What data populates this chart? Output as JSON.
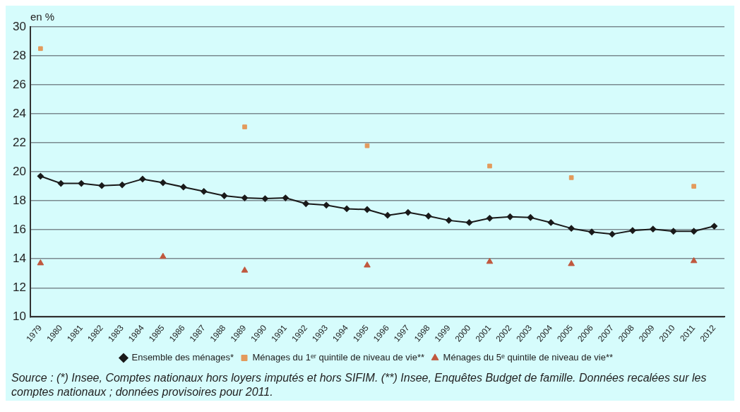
{
  "chart_data": {
    "type": "line",
    "ylabel": "en %",
    "categories": [
      "1979",
      "1980",
      "1981",
      "1982",
      "1983",
      "1984",
      "1985",
      "1986",
      "1987",
      "1988",
      "1989",
      "1990",
      "1991",
      "1992",
      "1993",
      "1994",
      "1995",
      "1996",
      "1997",
      "1998",
      "1999",
      "2000",
      "2001",
      "2002",
      "2003",
      "2004",
      "2005",
      "2006",
      "2007",
      "2008",
      "2009",
      "2010",
      "2011",
      "2012"
    ],
    "ylim": [
      10,
      30
    ],
    "yticks": [
      10,
      12,
      14,
      16,
      18,
      20,
      22,
      24,
      26,
      28,
      30
    ],
    "grid": "y",
    "legend": "bottom",
    "annotations": [
      "Source : (*) Insee, Comptes nationaux hors loyers imputés et hors SIFIM. (**) Insee, Enquêtes Budget de famille. Données recalées sur les comptes nationaux ; données provisoires pour 2011."
    ],
    "series": [
      {
        "name": "Ensemble des ménages*",
        "color": "#1a1a1a",
        "marker": "diamond",
        "values": [
          19.7,
          19.2,
          19.2,
          19.05,
          19.1,
          19.5,
          19.25,
          18.95,
          18.65,
          18.35,
          18.2,
          18.15,
          18.2,
          17.8,
          17.7,
          17.45,
          17.4,
          17.0,
          17.2,
          16.95,
          16.65,
          16.5,
          16.8,
          16.9,
          16.85,
          16.5,
          16.1,
          15.85,
          15.7,
          15.95,
          16.05,
          15.9,
          15.9,
          16.25
        ]
      },
      {
        "name": "Ménages du 1ᵉʳ quintile de niveau de vie**",
        "color": "#e39a5c",
        "type": "scatter",
        "marker": "square",
        "values": [
          28.5,
          null,
          null,
          null,
          null,
          null,
          null,
          null,
          null,
          null,
          23.1,
          null,
          null,
          null,
          null,
          null,
          21.8,
          null,
          null,
          null,
          null,
          null,
          20.4,
          null,
          null,
          null,
          19.6,
          null,
          null,
          null,
          null,
          null,
          19.0,
          null
        ]
      },
      {
        "name": "Ménages du 5ᵉ quintile de niveau de vie**",
        "color": "#c0583e",
        "type": "scatter",
        "marker": "triangle",
        "values": [
          13.7,
          null,
          null,
          null,
          null,
          null,
          14.15,
          null,
          null,
          null,
          13.2,
          null,
          null,
          null,
          null,
          null,
          13.55,
          null,
          null,
          null,
          null,
          null,
          13.8,
          null,
          null,
          null,
          13.65,
          null,
          null,
          null,
          null,
          null,
          13.85,
          null
        ]
      }
    ]
  }
}
